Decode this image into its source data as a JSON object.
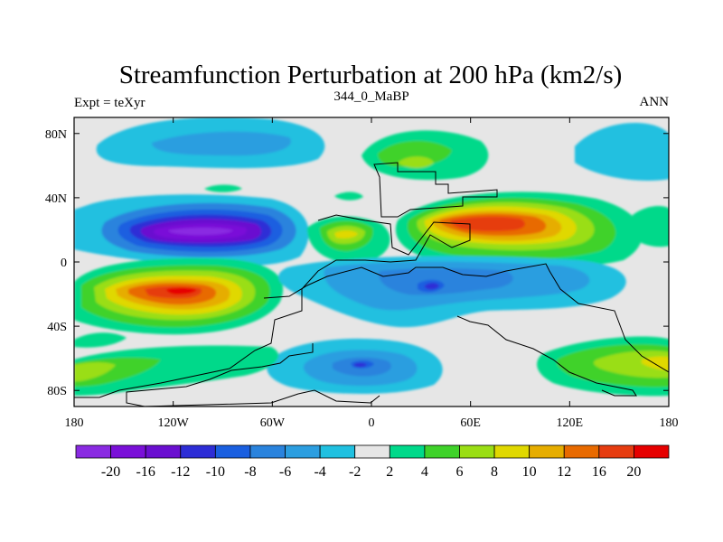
{
  "title": "Streamfunction Perturbation at 200 hPa (km2/s)",
  "left_label": "Expt = teXyr",
  "center_label": "344_0_MaBP",
  "right_label": "ANN",
  "map": {
    "lon_range": [
      -180,
      180
    ],
    "lat_range": [
      -90,
      90
    ],
    "x_ticks": [
      {
        "value": -180,
        "label": "180"
      },
      {
        "value": -120,
        "label": "120W"
      },
      {
        "value": -60,
        "label": "60W"
      },
      {
        "value": 0,
        "label": "0"
      },
      {
        "value": 60,
        "label": "60E"
      },
      {
        "value": 120,
        "label": "120E"
      },
      {
        "value": 180,
        "label": "180"
      }
    ],
    "y_ticks": [
      {
        "value": 80,
        "label": "80N"
      },
      {
        "value": 40,
        "label": "40N"
      },
      {
        "value": 0,
        "label": "0"
      },
      {
        "value": -40,
        "label": "40S"
      },
      {
        "value": -80,
        "label": "80S"
      }
    ],
    "background_color": "#e6e6e6"
  },
  "colorbar": {
    "colors": [
      "#8a2be2",
      "#7a10d8",
      "#6a0fd0",
      "#2d2dd6",
      "#1a5fe0",
      "#2a83dd",
      "#2c9ee0",
      "#20c0e0",
      "#e6e6e6",
      "#00d98a",
      "#3fd22a",
      "#9ade14",
      "#e0d800",
      "#e6ad00",
      "#e86a00",
      "#e63c10",
      "#e60000"
    ],
    "labels": [
      "-20",
      "-16",
      "-12",
      "-10",
      "-8",
      "-6",
      "-4",
      "-2",
      "2",
      "4",
      "6",
      "8",
      "10",
      "12",
      "16",
      "20"
    ]
  }
}
